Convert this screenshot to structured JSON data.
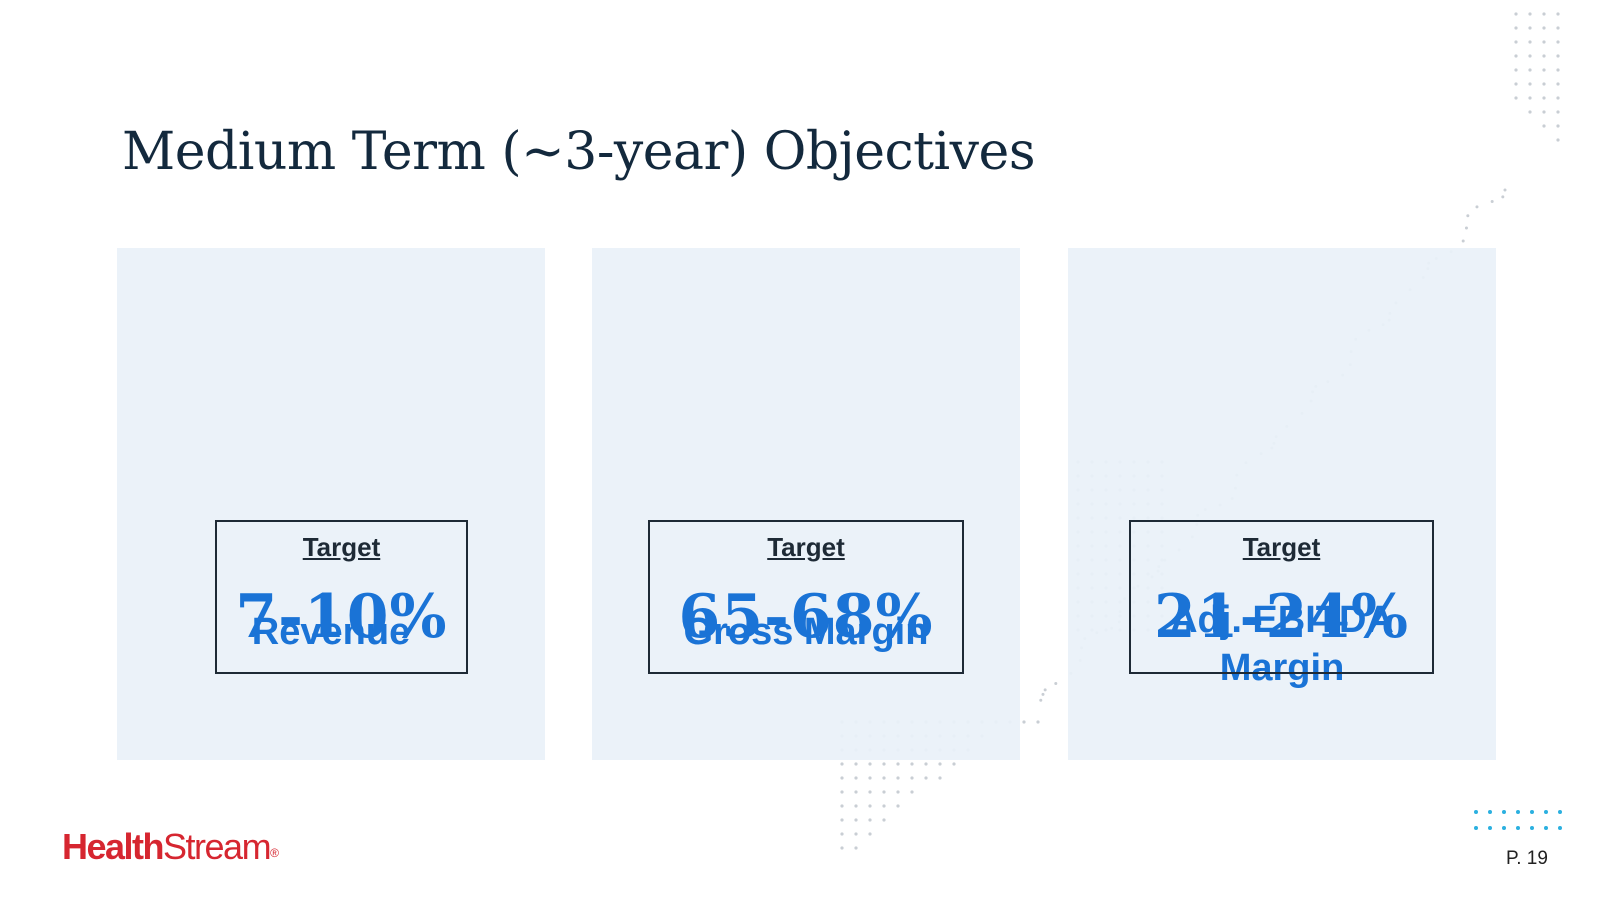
{
  "slide": {
    "title": "Medium Term (~3-year) Objectives",
    "page_number": "P. 19"
  },
  "cards": [
    {
      "label_lines": [
        "Revenue"
      ],
      "target_label": "Target",
      "target_value": "7-10%"
    },
    {
      "label_lines": [
        "Gross Margin"
      ],
      "target_label": "Target",
      "target_value": "65-68%"
    },
    {
      "label_lines": [
        "Adj. EBITDA",
        "Margin"
      ],
      "target_label": "Target",
      "target_value": "21-24%"
    }
  ],
  "logo": {
    "health": "Health",
    "stream": "Stream",
    "reg": "®"
  },
  "colors": {
    "accent_blue": "#1a73d6",
    "title_navy": "#13293d",
    "card_bg": "#e9f1f9",
    "brand_red": "#d62630",
    "dot_grey": "#c9ced4",
    "dot_teal": "#2bb0e0"
  }
}
